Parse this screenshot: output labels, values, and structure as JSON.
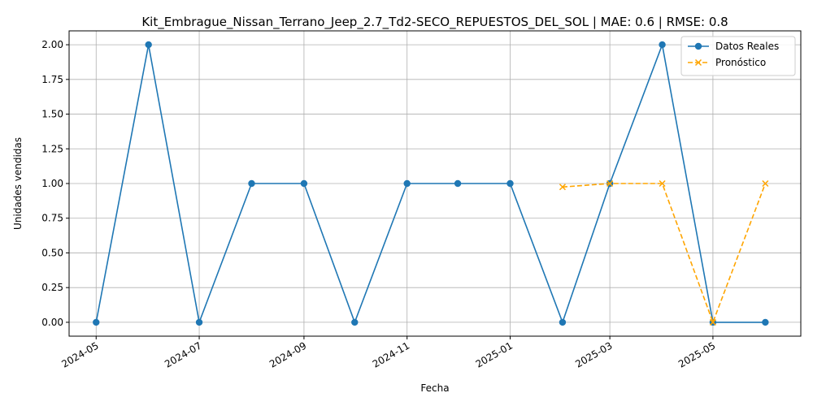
{
  "chart_data": {
    "type": "line",
    "title": "Kit_Embrague_Nissan_Terrano_Jeep_2.7_Td2-SECO_REPUESTOS_DEL_SOL | MAE: 0.6 | RMSE: 0.8",
    "xlabel": "Fecha",
    "ylabel": "Unidades vendidas",
    "xlim": [
      "2024-04-15",
      "2025-06-22"
    ],
    "ylim": [
      -0.1,
      2.1
    ],
    "x_ticks": [
      "2024-05",
      "2024-07",
      "2024-09",
      "2024-11",
      "2025-01",
      "2025-03",
      "2025-05"
    ],
    "y_ticks": [
      "0.00",
      "0.25",
      "0.50",
      "0.75",
      "1.00",
      "1.25",
      "1.50",
      "1.75",
      "2.00"
    ],
    "grid": true,
    "legend": "top-right",
    "series": [
      {
        "name": "Datos Reales",
        "color": "#1f77b4",
        "style": "solid",
        "marker": "circle",
        "x": [
          "2024-05-01",
          "2024-06-01",
          "2024-07-01",
          "2024-08-01",
          "2024-09-01",
          "2024-10-01",
          "2024-11-01",
          "2024-12-01",
          "2025-01-01",
          "2025-02-01",
          "2025-03-01",
          "2025-04-01",
          "2025-05-01",
          "2025-06-01"
        ],
        "values": [
          0,
          2,
          0,
          1,
          1,
          0,
          1,
          1,
          1,
          0,
          1,
          2,
          0,
          0
        ]
      },
      {
        "name": "Pronóstico",
        "color": "#ffa500",
        "style": "dashed",
        "marker": "x",
        "x": [
          "2025-02-01",
          "2025-03-01",
          "2025-04-01",
          "2025-05-01",
          "2025-06-01"
        ],
        "values": [
          0.975,
          1.0,
          1.0,
          0.0,
          1.0
        ]
      }
    ]
  }
}
